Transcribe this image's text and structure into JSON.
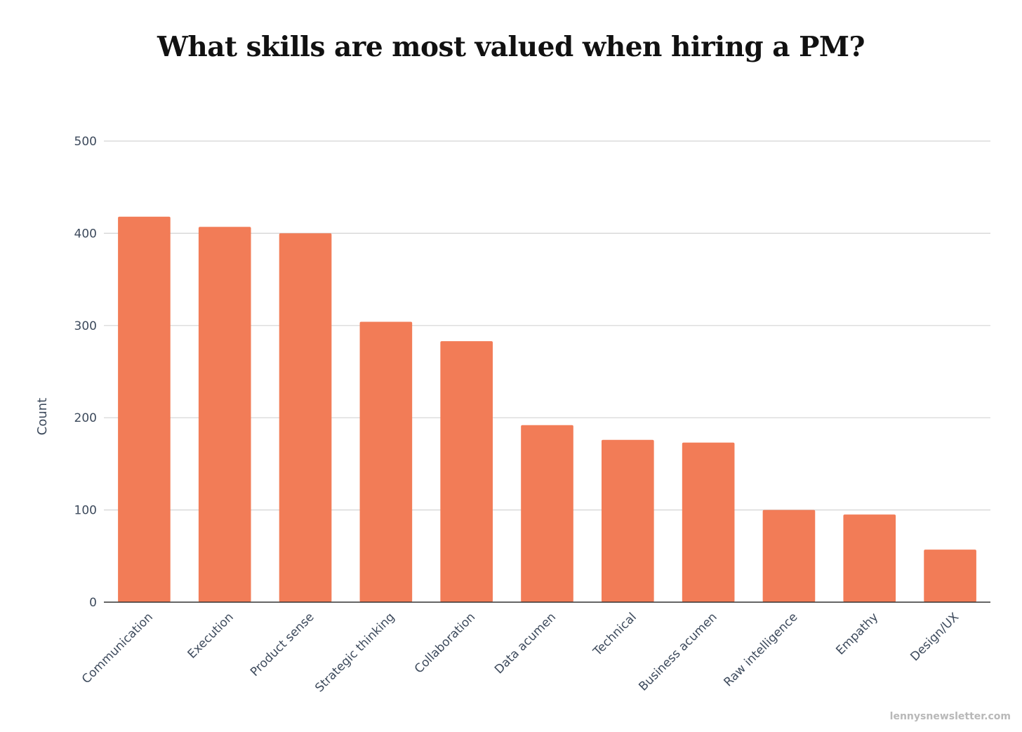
{
  "chart_data": {
    "type": "bar",
    "title": "What skills are most valued when hiring a PM?",
    "xlabel": "",
    "ylabel": "Count",
    "categories": [
      "Communication",
      "Execution",
      "Product sense",
      "Strategic thinking",
      "Collaboration",
      "Data acumen",
      "Technical",
      "Business acumen",
      "Raw intelligence",
      "Empathy",
      "Design/UX"
    ],
    "values": [
      418,
      407,
      400,
      304,
      283,
      192,
      176,
      173,
      100,
      95,
      57
    ],
    "ylim": [
      0,
      500
    ],
    "yticks": [
      0,
      100,
      200,
      300,
      400,
      500
    ],
    "grid": true,
    "legend": "none",
    "bar_color": "#f27c57",
    "gridline_color": "#d4d4d4",
    "axis_color": "#333333"
  },
  "footer": {
    "source": "lennysnewsletter.com"
  }
}
